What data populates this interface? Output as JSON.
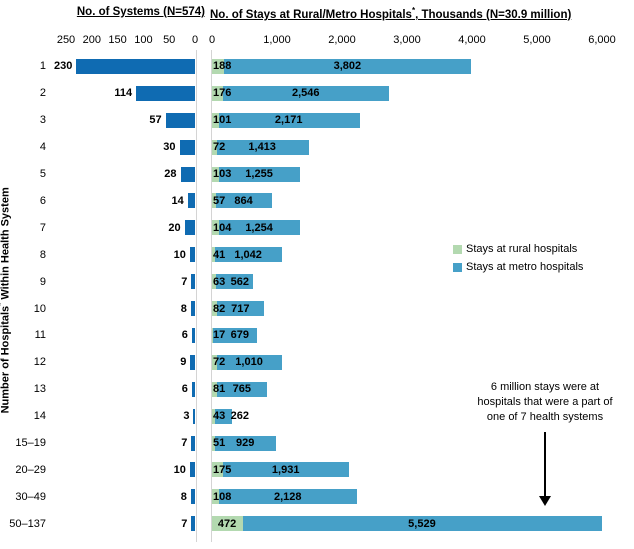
{
  "left_chart": {
    "title": "No. of Systems (N=574)",
    "ticks": [
      250,
      200,
      150,
      100,
      50,
      0
    ],
    "bar_color": "#0F6BB2"
  },
  "right_chart": {
    "title_pre": "No. of Stays at Rural/Metro Hospitals",
    "title_sup": "*",
    "title_post": ", Thousands (N=30.9 million)",
    "ticks": [
      0,
      1000,
      2000,
      3000,
      4000,
      5000,
      6000
    ],
    "rural_color": "#B3D9B0",
    "metro_color": "#46A0C8",
    "gridline_color": "#D4D4D4"
  },
  "y_axis": {
    "pre": "Number of Hospitals",
    "sup": "*",
    "post": " Within Health System"
  },
  "legend": {
    "items": [
      {
        "label": "Stays at rural hospitals",
        "color": "#B3D9B0"
      },
      {
        "label": "Stays at metro hospitals",
        "color": "#46A0C8"
      }
    ]
  },
  "annotation": {
    "lines": [
      "6 million stays were at",
      "hospitals that were a part of",
      "one of 7 health systems"
    ]
  },
  "chart_data": {
    "type": "bar",
    "orientation": "horizontal",
    "grid": false,
    "categories": [
      "1",
      "2",
      "3",
      "4",
      "5",
      "6",
      "7",
      "8",
      "9",
      "10",
      "11",
      "12",
      "13",
      "14",
      "15–19",
      "20–29",
      "30–49",
      "50–137"
    ],
    "left_panel": {
      "title": "No. of Systems (N=574)",
      "xlim": [
        250,
        0
      ],
      "ticks": [
        250,
        200,
        150,
        100,
        50,
        0
      ],
      "series": [
        {
          "name": "No. of systems",
          "color": "#0F6BB2",
          "values": [
            230,
            114,
            57,
            30,
            28,
            14,
            20,
            10,
            7,
            8,
            6,
            9,
            6,
            3,
            7,
            10,
            8,
            7
          ]
        }
      ]
    },
    "right_panel": {
      "title": "No. of Stays at Rural/Metro Hospitals*, Thousands (N=30.9 million)",
      "xlim": [
        0,
        6500
      ],
      "ticks": [
        0,
        1000,
        2000,
        3000,
        4000,
        5000,
        6000
      ],
      "stacked": true,
      "series": [
        {
          "name": "Stays at rural hospitals",
          "color": "#B3D9B0",
          "values": [
            188,
            176,
            101,
            72,
            103,
            57,
            104,
            41,
            63,
            82,
            17,
            72,
            81,
            43,
            51,
            175,
            108,
            472
          ]
        },
        {
          "name": "Stays at metro hospitals",
          "color": "#46A0C8",
          "values": [
            3802,
            2546,
            2171,
            1413,
            1255,
            864,
            1254,
            1042,
            562,
            717,
            679,
            1010,
            765,
            262,
            929,
            1931,
            2128,
            5529
          ]
        }
      ]
    },
    "ylabel": "Number of Hospitals* Within Health System",
    "legend": [
      "Stays at rural hospitals",
      "Stays at metro hospitals"
    ],
    "legend_position": "right-middle",
    "annotation": "6 million stays were at hospitals that were a part of one of 7 health systems"
  }
}
